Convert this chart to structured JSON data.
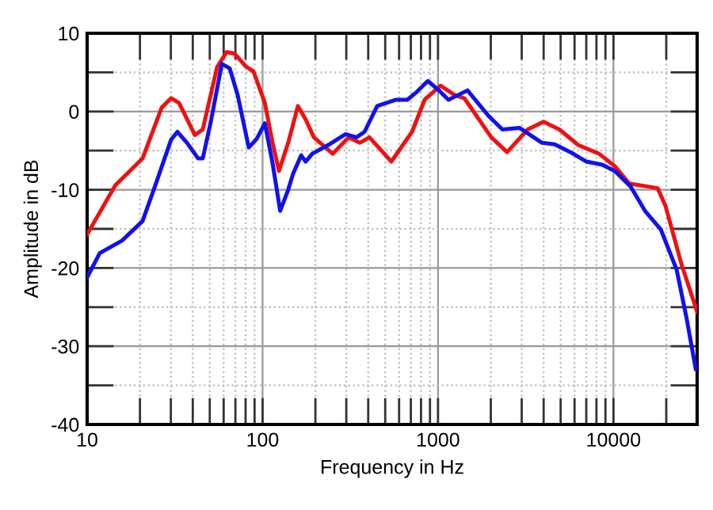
{
  "chart_data": {
    "type": "line",
    "xlabel": "Frequency in Hz",
    "ylabel": "Amplitude in dB",
    "log": "x",
    "grid": true,
    "line_style": "solid",
    "marker": "none",
    "xlim": [
      10,
      30000
    ],
    "ylim": [
      -40,
      10
    ],
    "xticks": [
      10,
      {
        "value": 20,
        "label": null
      },
      {
        "value": 30,
        "label": null
      },
      {
        "value": 40,
        "label": null
      },
      {
        "value": 50,
        "label": null
      },
      {
        "value": 60,
        "label": null
      },
      {
        "value": 70,
        "label": null
      },
      {
        "value": 80,
        "label": null
      },
      {
        "value": 90,
        "label": null
      },
      100,
      {
        "value": 200,
        "label": null
      },
      {
        "value": 300,
        "label": null
      },
      {
        "value": 400,
        "label": null
      },
      {
        "value": 500,
        "label": null
      },
      {
        "value": 600,
        "label": null
      },
      {
        "value": 700,
        "label": null
      },
      {
        "value": 800,
        "label": null
      },
      {
        "value": 900,
        "label": null
      },
      1000,
      {
        "value": 2000,
        "label": null
      },
      {
        "value": 3000,
        "label": null
      },
      {
        "value": 4000,
        "label": null
      },
      {
        "value": 5000,
        "label": null
      },
      {
        "value": 6000,
        "label": null
      },
      {
        "value": 7000,
        "label": null
      },
      {
        "value": 8000,
        "label": null
      },
      {
        "value": 9000,
        "label": null
      },
      10000,
      {
        "value": 20000,
        "label": null
      }
    ],
    "yticks": [
      -40,
      {
        "value": -35,
        "label": null
      },
      -30,
      {
        "value": -25,
        "label": null
      },
      -20,
      {
        "value": -15,
        "label": null
      },
      -10,
      {
        "value": -5,
        "label": null
      },
      0,
      {
        "value": 5,
        "label": null
      },
      10
    ],
    "series": [
      {
        "color": "#ee1111",
        "x": [
          10,
          14.5,
          20.7,
          26.6,
          30.1,
          33.4,
          41.1,
          45.6,
          55.1,
          62.4,
          69.2,
          80,
          88.8,
          103,
          114,
          124,
          140,
          159,
          176,
          196,
          251,
          309,
          358,
          406,
          542,
          711,
          839,
          1034,
          1247,
          1413,
          2012,
          2477,
          3243,
          3995,
          4919,
          6310,
          8279,
          10190,
          12290,
          17870,
          19820,
          24410,
          30000
        ],
        "values": [
          -15.7,
          -9.4,
          -6,
          0.5,
          1.7,
          1.1,
          -3,
          -2.3,
          5.7,
          7.6,
          7.4,
          5.8,
          5.1,
          1.1,
          -4,
          -7.6,
          -4,
          0.7,
          -1,
          -3.3,
          -5.4,
          -3.3,
          -4,
          -3.3,
          -6.4,
          -2.6,
          1.5,
          3.3,
          2.1,
          1.7,
          -3.3,
          -5.2,
          -2.3,
          -1.3,
          -2.3,
          -4.3,
          -5.4,
          -7,
          -9.2,
          -9.8,
          -12.1,
          -19.5,
          -25.6
        ]
      },
      {
        "color": "#1111ee",
        "x": [
          10,
          11.8,
          15.8,
          20.7,
          24.5,
          30.1,
          32.7,
          37.1,
          42.9,
          45.6,
          50.7,
          58.6,
          65,
          72.1,
          83.4,
          92.6,
          103,
          114,
          126,
          140,
          149,
          166,
          176,
          192,
          236,
          297,
          343,
          381,
          450,
          577,
          668,
          757,
          875,
          1012,
          1147,
          1473,
          1930,
          2328,
          2924,
          3914,
          4623,
          5688,
          7012,
          8630,
          10190,
          12540,
          15130,
          18640,
          22910,
          26000,
          29440
        ],
        "values": [
          -21.2,
          -18.1,
          -16.5,
          -14,
          -9.4,
          -3.6,
          -2.6,
          -4,
          -6,
          -6,
          -1.3,
          6.1,
          5.5,
          2.1,
          -4.6,
          -3.5,
          -1.5,
          -6.6,
          -12.7,
          -10,
          -8,
          -5.6,
          -6.4,
          -5.4,
          -4.3,
          -2.9,
          -3.3,
          -2.6,
          0.7,
          1.5,
          1.5,
          2.5,
          3.9,
          2.7,
          1.5,
          2.7,
          -0.5,
          -2.3,
          -2.1,
          -4,
          -4.2,
          -5.2,
          -6.4,
          -6.8,
          -7.6,
          -9.6,
          -12.7,
          -15.1,
          -20.2,
          -26.2,
          -32.9
        ]
      }
    ]
  }
}
